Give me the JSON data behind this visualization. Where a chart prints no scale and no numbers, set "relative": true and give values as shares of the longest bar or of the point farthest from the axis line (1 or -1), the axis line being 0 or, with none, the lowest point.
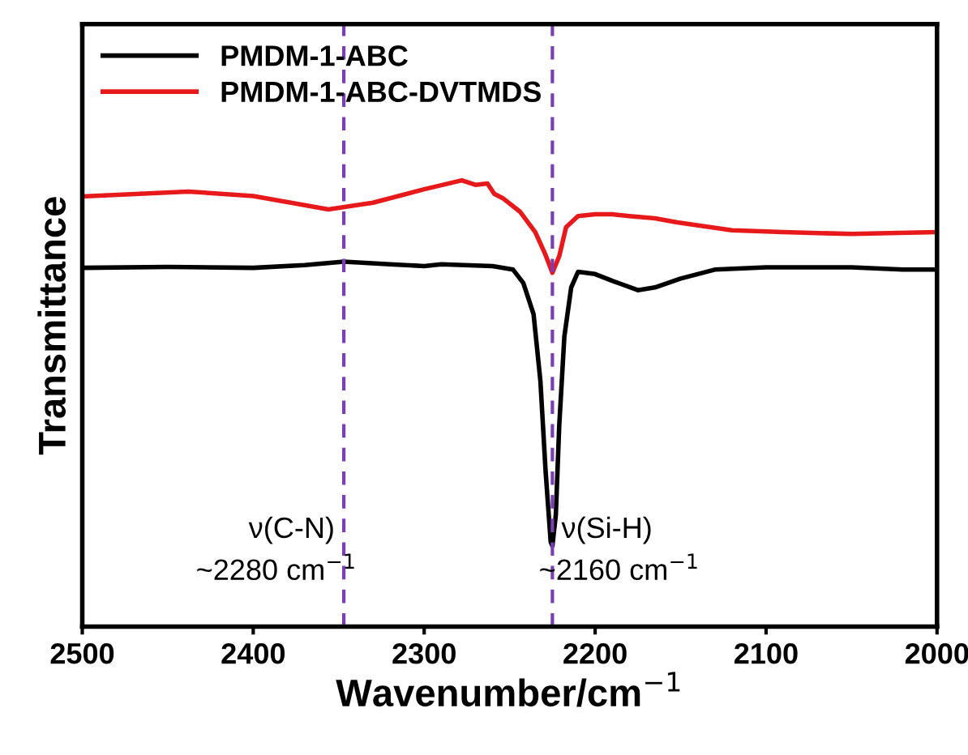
{
  "chart_data": {
    "type": "line",
    "xlabel": "Wavenumber/cm$^{−1}$",
    "ylabel": "Transmittance",
    "relative": true,
    "xlim": [
      2500,
      2000
    ],
    "xticks": [
      2500,
      2400,
      2300,
      2200,
      2100,
      2000
    ],
    "legend": "top left",
    "grid": false,
    "marker": "none",
    "line_style": "solid",
    "series": [
      {
        "name": "PMDM-1-ABC",
        "color": "#000000",
        "x": [
          2500,
          2450,
          2400,
          2370,
          2347,
          2320,
          2300,
          2290,
          2260,
          2248,
          2242,
          2236,
          2232,
          2229,
          2226,
          2225,
          2223,
          2221,
          2218,
          2214,
          2210,
          2200,
          2190,
          2175,
          2165,
          2150,
          2130,
          2100,
          2050,
          2020,
          2000
        ],
        "values": [
          0.804,
          0.806,
          0.804,
          0.81,
          0.818,
          0.812,
          0.808,
          0.812,
          0.808,
          0.8,
          0.77,
          0.7,
          0.55,
          0.35,
          0.19,
          0.181,
          0.25,
          0.45,
          0.65,
          0.76,
          0.795,
          0.79,
          0.775,
          0.754,
          0.76,
          0.78,
          0.8,
          0.805,
          0.805,
          0.8,
          0.8
        ]
      },
      {
        "name": "PMDM-1-ABC-DVTMDS",
        "color": "#e8191b",
        "x": [
          2500,
          2438,
          2400,
          2356,
          2330,
          2300,
          2278,
          2270,
          2263,
          2259,
          2254,
          2244,
          2235,
          2229,
          2225,
          2221,
          2217,
          2210,
          2200,
          2190,
          2180,
          2165,
          2152,
          2120,
          2090,
          2050,
          2000
        ],
        "values": [
          0.964,
          0.975,
          0.965,
          0.935,
          0.95,
          0.98,
          1.0,
          0.99,
          0.993,
          0.97,
          0.96,
          0.93,
          0.884,
          0.833,
          0.793,
          0.83,
          0.895,
          0.92,
          0.924,
          0.924,
          0.92,
          0.915,
          0.906,
          0.888,
          0.884,
          0.88,
          0.884
        ]
      }
    ],
    "ref_lines": [
      {
        "axis": "x",
        "value": 2347,
        "color": "#7b3fb5",
        "line_style": "dashed",
        "label": "ν(C-N)"
      },
      {
        "axis": "x",
        "value": 2225,
        "color": "#7b3fb5",
        "line_style": "dashed",
        "label": "ν(Si-H)"
      }
    ],
    "annotations": [
      "~2280 cm$^{−1}$",
      "~2160 cm$^{−1}$"
    ]
  }
}
